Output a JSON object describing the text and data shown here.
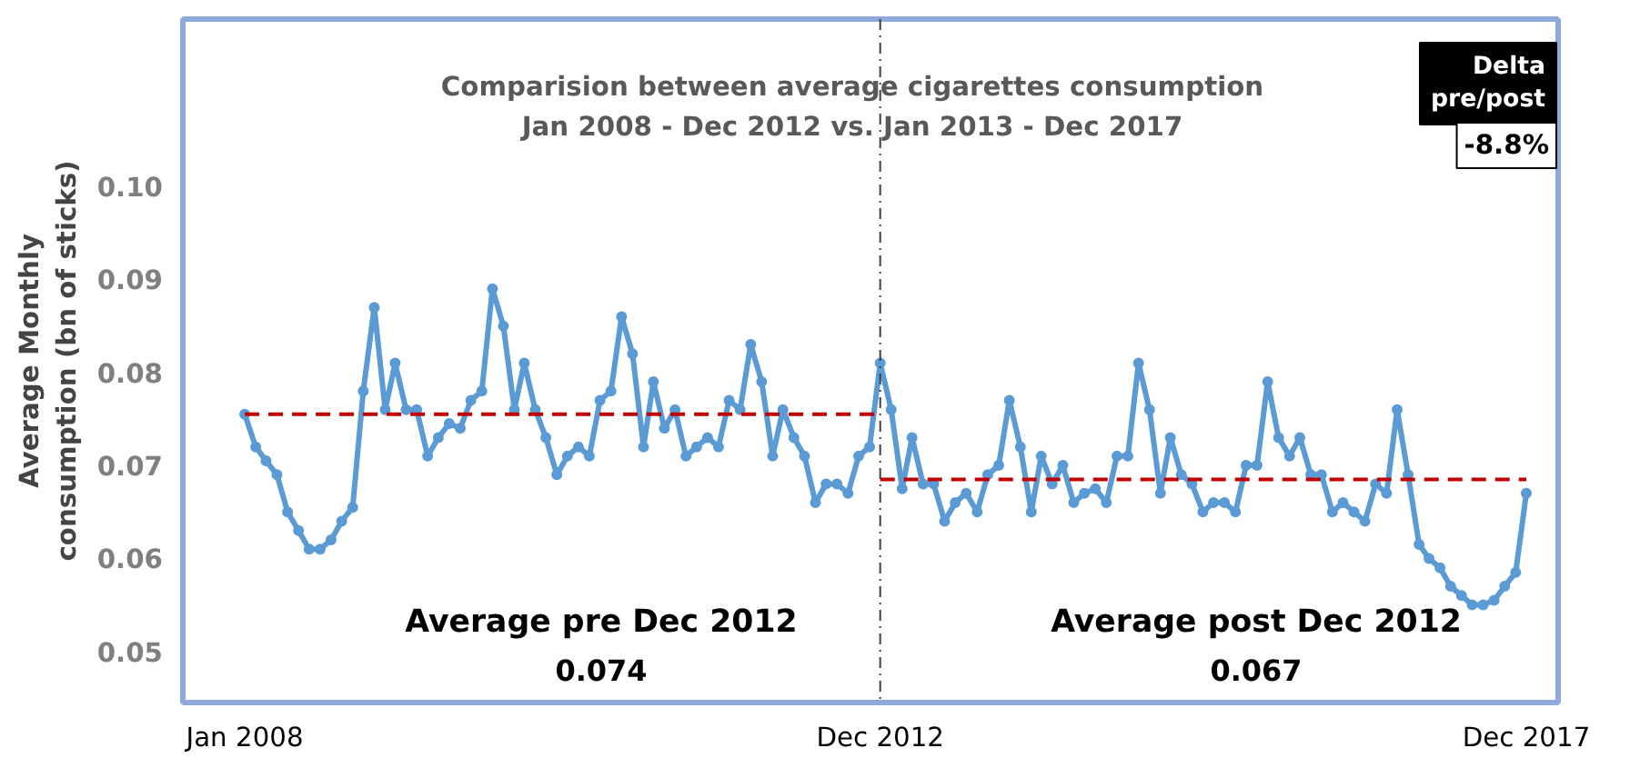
{
  "chart_data": {
    "type": "line",
    "title": "Comparision between average cigarettes consumption",
    "subtitle": "Jan 2008 - Dec 2012 vs. Jan 2013 - Dec 2017",
    "ylabel": "Average Monthly consumption (bn of sticks)",
    "x": [
      "2008-01",
      "2008-02",
      "2008-03",
      "2008-04",
      "2008-05",
      "2008-06",
      "2008-07",
      "2008-08",
      "2008-09",
      "2008-10",
      "2008-11",
      "2008-12",
      "2009-01",
      "2009-02",
      "2009-03",
      "2009-04",
      "2009-05",
      "2009-06",
      "2009-07",
      "2009-08",
      "2009-09",
      "2009-10",
      "2009-11",
      "2009-12",
      "2010-01",
      "2010-02",
      "2010-03",
      "2010-04",
      "2010-05",
      "2010-06",
      "2010-07",
      "2010-08",
      "2010-09",
      "2010-10",
      "2010-11",
      "2010-12",
      "2011-01",
      "2011-02",
      "2011-03",
      "2011-04",
      "2011-05",
      "2011-06",
      "2011-07",
      "2011-08",
      "2011-09",
      "2011-10",
      "2011-11",
      "2011-12",
      "2012-01",
      "2012-02",
      "2012-03",
      "2012-04",
      "2012-05",
      "2012-06",
      "2012-07",
      "2012-08",
      "2012-09",
      "2012-10",
      "2012-11",
      "2012-12",
      "2013-01",
      "2013-02",
      "2013-03",
      "2013-04",
      "2013-05",
      "2013-06",
      "2013-07",
      "2013-08",
      "2013-09",
      "2013-10",
      "2013-11",
      "2013-12",
      "2014-01",
      "2014-02",
      "2014-03",
      "2014-04",
      "2014-05",
      "2014-06",
      "2014-07",
      "2014-08",
      "2014-09",
      "2014-10",
      "2014-11",
      "2014-12",
      "2015-01",
      "2015-02",
      "2015-03",
      "2015-04",
      "2015-05",
      "2015-06",
      "2015-07",
      "2015-08",
      "2015-09",
      "2015-10",
      "2015-11",
      "2015-12",
      "2016-01",
      "2016-02",
      "2016-03",
      "2016-04",
      "2016-05",
      "2016-06",
      "2016-07",
      "2016-08",
      "2016-09",
      "2016-10",
      "2016-11",
      "2016-12",
      "2017-01",
      "2017-02",
      "2017-03",
      "2017-04",
      "2017-05",
      "2017-06",
      "2017-07",
      "2017-08",
      "2017-09",
      "2017-10",
      "2017-11",
      "2017-12"
    ],
    "series": [
      {
        "color": "#5b9bd5",
        "marker": "circle",
        "line_style": "solid",
        "values": [
          0.0755,
          0.072,
          0.0705,
          0.069,
          0.065,
          0.063,
          0.061,
          0.061,
          0.062,
          0.064,
          0.0655,
          0.078,
          0.087,
          0.076,
          0.081,
          0.076,
          0.076,
          0.071,
          0.073,
          0.0745,
          0.074,
          0.077,
          0.078,
          0.089,
          0.085,
          0.076,
          0.081,
          0.076,
          0.073,
          0.069,
          0.071,
          0.072,
          0.071,
          0.077,
          0.078,
          0.086,
          0.082,
          0.072,
          0.079,
          0.074,
          0.076,
          0.071,
          0.072,
          0.073,
          0.072,
          0.077,
          0.076,
          0.083,
          0.079,
          0.071,
          0.076,
          0.073,
          0.071,
          0.066,
          0.068,
          0.068,
          0.067,
          0.071,
          0.072,
          0.081,
          0.076,
          0.0675,
          0.073,
          0.068,
          0.068,
          0.064,
          0.066,
          0.067,
          0.065,
          0.069,
          0.07,
          0.077,
          0.072,
          0.065,
          0.071,
          0.068,
          0.07,
          0.066,
          0.067,
          0.0675,
          0.066,
          0.071,
          0.071,
          0.081,
          0.076,
          0.067,
          0.073,
          0.069,
          0.068,
          0.065,
          0.066,
          0.066,
          0.065,
          0.07,
          0.07,
          0.079,
          0.073,
          0.071,
          0.073,
          0.069,
          0.069,
          0.065,
          0.066,
          0.065,
          0.064,
          0.068,
          0.067,
          0.076,
          0.069,
          0.0615,
          0.06,
          0.059,
          0.057,
          0.056,
          0.055,
          0.055,
          0.0555,
          0.057,
          0.0585,
          0.067
        ]
      },
      {
        "type": "line",
        "color": "#c00000",
        "marker": "none",
        "line_style": "dashed",
        "x": [
          "2008-01",
          "2012-12"
        ],
        "values": [
          0.0755,
          0.0755
        ]
      },
      {
        "type": "line",
        "color": "#c00000",
        "marker": "none",
        "line_style": "dashed",
        "x": [
          "2012-12",
          "2017-12"
        ],
        "values": [
          0.0685,
          0.0685
        ]
      }
    ],
    "ref_lines": [
      {
        "axis": "x",
        "value": "2012-12",
        "color": "#404040",
        "line_style": "dashdot"
      }
    ],
    "annotations": [
      "Average pre Dec 2012",
      "0.074",
      "Average post Dec 2012",
      "0.067",
      "Delta pre/post",
      "-8.8%"
    ],
    "xlim": [
      "2007-07-10",
      "2018-03-01"
    ],
    "xticks": [
      {
        "value": "2008-01",
        "label": "Jan 2008"
      },
      {
        "value": "2012-12",
        "label": "Dec 2012"
      },
      {
        "value": "2017-12",
        "label": "Dec 2017"
      }
    ],
    "ylim": [
      0.0445,
      0.118
    ],
    "yticks": [
      0.05,
      0.06,
      0.07,
      0.08,
      0.09,
      {
        "value": 0.1,
        "label": "0.10"
      }
    ],
    "grid": false
  }
}
